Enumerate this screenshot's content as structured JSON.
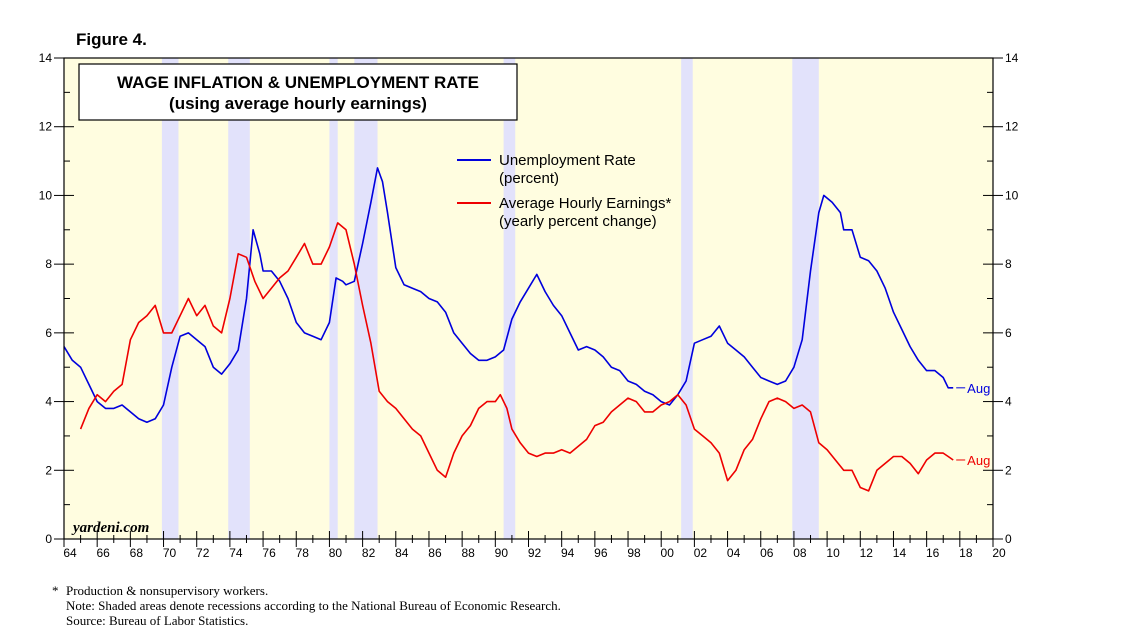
{
  "figure_label": "Figure 4.",
  "chart_data": {
    "type": "line",
    "title": "WAGE INFLATION & UNEMPLOYMENT RATE",
    "subtitle": "(using average hourly earnings)",
    "watermark": "yardeni.com",
    "xlim": [
      1964,
      2020
    ],
    "ylim": [
      0,
      14
    ],
    "yticks": [
      "0",
      "2",
      "4",
      "6",
      "8",
      "10",
      "12",
      "14"
    ],
    "xticks": [
      "64",
      "66",
      "68",
      "70",
      "72",
      "74",
      "76",
      "78",
      "80",
      "82",
      "84",
      "86",
      "88",
      "90",
      "92",
      "94",
      "96",
      "98",
      "00",
      "02",
      "04",
      "06",
      "08",
      "10",
      "12",
      "14",
      "16",
      "18",
      "20"
    ],
    "background_color": "#fffde0",
    "recession_color": "#e2e2fb",
    "recessions": [
      [
        1969.9,
        1970.9
      ],
      [
        1973.9,
        1975.2
      ],
      [
        1980.0,
        1980.5
      ],
      [
        1981.5,
        1982.9
      ],
      [
        1990.5,
        1991.2
      ],
      [
        2001.2,
        2001.9
      ],
      [
        2007.9,
        2009.5
      ]
    ],
    "legend": [
      {
        "label": "Unemployment Rate",
        "sublabel": "(percent)",
        "color": "#0000dd"
      },
      {
        "label": "Average Hourly Earnings*",
        "sublabel": "(yearly percent change)",
        "color": "#ee0000"
      }
    ],
    "series": [
      {
        "name": "Unemployment Rate",
        "color": "#0000dd",
        "end_label": "Aug",
        "points": [
          [
            1964.0,
            5.6
          ],
          [
            1964.5,
            5.2
          ],
          [
            1965.0,
            5.0
          ],
          [
            1965.5,
            4.5
          ],
          [
            1966.0,
            4.0
          ],
          [
            1966.5,
            3.8
          ],
          [
            1967.0,
            3.8
          ],
          [
            1967.5,
            3.9
          ],
          [
            1968.0,
            3.7
          ],
          [
            1968.5,
            3.5
          ],
          [
            1969.0,
            3.4
          ],
          [
            1969.5,
            3.5
          ],
          [
            1970.0,
            3.9
          ],
          [
            1970.5,
            5.0
          ],
          [
            1971.0,
            5.9
          ],
          [
            1971.5,
            6.0
          ],
          [
            1972.0,
            5.8
          ],
          [
            1972.5,
            5.6
          ],
          [
            1973.0,
            5.0
          ],
          [
            1973.5,
            4.8
          ],
          [
            1974.0,
            5.1
          ],
          [
            1974.5,
            5.5
          ],
          [
            1975.0,
            7.0
          ],
          [
            1975.4,
            9.0
          ],
          [
            1975.8,
            8.3
          ],
          [
            1976.0,
            7.8
          ],
          [
            1976.5,
            7.8
          ],
          [
            1977.0,
            7.5
          ],
          [
            1977.5,
            7.0
          ],
          [
            1978.0,
            6.3
          ],
          [
            1978.5,
            6.0
          ],
          [
            1979.0,
            5.9
          ],
          [
            1979.5,
            5.8
          ],
          [
            1980.0,
            6.3
          ],
          [
            1980.4,
            7.6
          ],
          [
            1980.8,
            7.5
          ],
          [
            1981.0,
            7.4
          ],
          [
            1981.5,
            7.5
          ],
          [
            1982.0,
            8.6
          ],
          [
            1982.5,
            9.8
          ],
          [
            1982.9,
            10.8
          ],
          [
            1983.2,
            10.4
          ],
          [
            1983.5,
            9.5
          ],
          [
            1984.0,
            7.9
          ],
          [
            1984.5,
            7.4
          ],
          [
            1985.0,
            7.3
          ],
          [
            1985.5,
            7.2
          ],
          [
            1986.0,
            7.0
          ],
          [
            1986.5,
            6.9
          ],
          [
            1987.0,
            6.6
          ],
          [
            1987.5,
            6.0
          ],
          [
            1988.0,
            5.7
          ],
          [
            1988.5,
            5.4
          ],
          [
            1989.0,
            5.2
          ],
          [
            1989.5,
            5.2
          ],
          [
            1990.0,
            5.3
          ],
          [
            1990.5,
            5.5
          ],
          [
            1991.0,
            6.4
          ],
          [
            1991.5,
            6.9
          ],
          [
            1992.0,
            7.3
          ],
          [
            1992.5,
            7.7
          ],
          [
            1993.0,
            7.2
          ],
          [
            1993.5,
            6.8
          ],
          [
            1994.0,
            6.5
          ],
          [
            1994.5,
            6.0
          ],
          [
            1995.0,
            5.5
          ],
          [
            1995.5,
            5.6
          ],
          [
            1996.0,
            5.5
          ],
          [
            1996.5,
            5.3
          ],
          [
            1997.0,
            5.0
          ],
          [
            1997.5,
            4.9
          ],
          [
            1998.0,
            4.6
          ],
          [
            1998.5,
            4.5
          ],
          [
            1999.0,
            4.3
          ],
          [
            1999.5,
            4.2
          ],
          [
            2000.0,
            4.0
          ],
          [
            2000.5,
            3.9
          ],
          [
            2001.0,
            4.2
          ],
          [
            2001.5,
            4.6
          ],
          [
            2002.0,
            5.7
          ],
          [
            2002.5,
            5.8
          ],
          [
            2003.0,
            5.9
          ],
          [
            2003.5,
            6.2
          ],
          [
            2004.0,
            5.7
          ],
          [
            2004.5,
            5.5
          ],
          [
            2005.0,
            5.3
          ],
          [
            2005.5,
            5.0
          ],
          [
            2006.0,
            4.7
          ],
          [
            2006.5,
            4.6
          ],
          [
            2007.0,
            4.5
          ],
          [
            2007.5,
            4.6
          ],
          [
            2008.0,
            5.0
          ],
          [
            2008.5,
            5.8
          ],
          [
            2009.0,
            7.8
          ],
          [
            2009.5,
            9.5
          ],
          [
            2009.8,
            10.0
          ],
          [
            2010.3,
            9.8
          ],
          [
            2010.8,
            9.5
          ],
          [
            2011.0,
            9.0
          ],
          [
            2011.5,
            9.0
          ],
          [
            2012.0,
            8.2
          ],
          [
            2012.5,
            8.1
          ],
          [
            2013.0,
            7.8
          ],
          [
            2013.5,
            7.3
          ],
          [
            2014.0,
            6.6
          ],
          [
            2014.5,
            6.1
          ],
          [
            2015.0,
            5.6
          ],
          [
            2015.5,
            5.2
          ],
          [
            2016.0,
            4.9
          ],
          [
            2016.5,
            4.9
          ],
          [
            2017.0,
            4.7
          ],
          [
            2017.3,
            4.4
          ],
          [
            2017.6,
            4.4
          ]
        ]
      },
      {
        "name": "Average Hourly Earnings*",
        "color": "#ee0000",
        "end_label": "Aug",
        "points": [
          [
            1965.0,
            3.2
          ],
          [
            1965.5,
            3.8
          ],
          [
            1966.0,
            4.2
          ],
          [
            1966.5,
            4.0
          ],
          [
            1967.0,
            4.3
          ],
          [
            1967.5,
            4.5
          ],
          [
            1968.0,
            5.8
          ],
          [
            1968.5,
            6.3
          ],
          [
            1969.0,
            6.5
          ],
          [
            1969.5,
            6.8
          ],
          [
            1970.0,
            6.0
          ],
          [
            1970.5,
            6.0
          ],
          [
            1971.0,
            6.5
          ],
          [
            1971.5,
            7.0
          ],
          [
            1972.0,
            6.5
          ],
          [
            1972.5,
            6.8
          ],
          [
            1973.0,
            6.2
          ],
          [
            1973.5,
            6.0
          ],
          [
            1974.0,
            7.0
          ],
          [
            1974.5,
            8.3
          ],
          [
            1975.0,
            8.2
          ],
          [
            1975.5,
            7.5
          ],
          [
            1976.0,
            7.0
          ],
          [
            1976.5,
            7.3
          ],
          [
            1977.0,
            7.6
          ],
          [
            1977.5,
            7.8
          ],
          [
            1978.0,
            8.2
          ],
          [
            1978.5,
            8.6
          ],
          [
            1979.0,
            8.0
          ],
          [
            1979.5,
            8.0
          ],
          [
            1980.0,
            8.5
          ],
          [
            1980.5,
            9.2
          ],
          [
            1981.0,
            9.0
          ],
          [
            1981.5,
            8.0
          ],
          [
            1982.0,
            6.8
          ],
          [
            1982.5,
            5.7
          ],
          [
            1983.0,
            4.3
          ],
          [
            1983.5,
            4.0
          ],
          [
            1984.0,
            3.8
          ],
          [
            1984.5,
            3.5
          ],
          [
            1985.0,
            3.2
          ],
          [
            1985.5,
            3.0
          ],
          [
            1986.0,
            2.5
          ],
          [
            1986.5,
            2.0
          ],
          [
            1987.0,
            1.8
          ],
          [
            1987.5,
            2.5
          ],
          [
            1988.0,
            3.0
          ],
          [
            1988.5,
            3.3
          ],
          [
            1989.0,
            3.8
          ],
          [
            1989.5,
            4.0
          ],
          [
            1990.0,
            4.0
          ],
          [
            1990.3,
            4.2
          ],
          [
            1990.7,
            3.8
          ],
          [
            1991.0,
            3.2
          ],
          [
            1991.5,
            2.8
          ],
          [
            1992.0,
            2.5
          ],
          [
            1992.5,
            2.4
          ],
          [
            1993.0,
            2.5
          ],
          [
            1993.5,
            2.5
          ],
          [
            1994.0,
            2.6
          ],
          [
            1994.5,
            2.5
          ],
          [
            1995.0,
            2.7
          ],
          [
            1995.5,
            2.9
          ],
          [
            1996.0,
            3.3
          ],
          [
            1996.5,
            3.4
          ],
          [
            1997.0,
            3.7
          ],
          [
            1997.5,
            3.9
          ],
          [
            1998.0,
            4.1
          ],
          [
            1998.5,
            4.0
          ],
          [
            1999.0,
            3.7
          ],
          [
            1999.5,
            3.7
          ],
          [
            2000.0,
            3.9
          ],
          [
            2000.5,
            4.0
          ],
          [
            2001.0,
            4.2
          ],
          [
            2001.5,
            3.9
          ],
          [
            2002.0,
            3.2
          ],
          [
            2002.5,
            3.0
          ],
          [
            2003.0,
            2.8
          ],
          [
            2003.5,
            2.5
          ],
          [
            2004.0,
            1.7
          ],
          [
            2004.5,
            2.0
          ],
          [
            2005.0,
            2.6
          ],
          [
            2005.5,
            2.9
          ],
          [
            2006.0,
            3.5
          ],
          [
            2006.5,
            4.0
          ],
          [
            2007.0,
            4.1
          ],
          [
            2007.5,
            4.0
          ],
          [
            2008.0,
            3.8
          ],
          [
            2008.5,
            3.9
          ],
          [
            2009.0,
            3.7
          ],
          [
            2009.5,
            2.8
          ],
          [
            2010.0,
            2.6
          ],
          [
            2010.5,
            2.3
          ],
          [
            2011.0,
            2.0
          ],
          [
            2011.5,
            2.0
          ],
          [
            2012.0,
            1.5
          ],
          [
            2012.5,
            1.4
          ],
          [
            2013.0,
            2.0
          ],
          [
            2013.5,
            2.2
          ],
          [
            2014.0,
            2.4
          ],
          [
            2014.5,
            2.4
          ],
          [
            2015.0,
            2.2
          ],
          [
            2015.5,
            1.9
          ],
          [
            2016.0,
            2.3
          ],
          [
            2016.5,
            2.5
          ],
          [
            2017.0,
            2.5
          ],
          [
            2017.3,
            2.4
          ],
          [
            2017.6,
            2.3
          ]
        ]
      }
    ]
  },
  "footnotes": {
    "asterisk": "*",
    "line1": "Production & nonsupervisory workers.",
    "line2": "Note: Shaded areas denote recessions according to the National Bureau of Economic Research.",
    "line3": "Source: Bureau of Labor Statistics."
  }
}
